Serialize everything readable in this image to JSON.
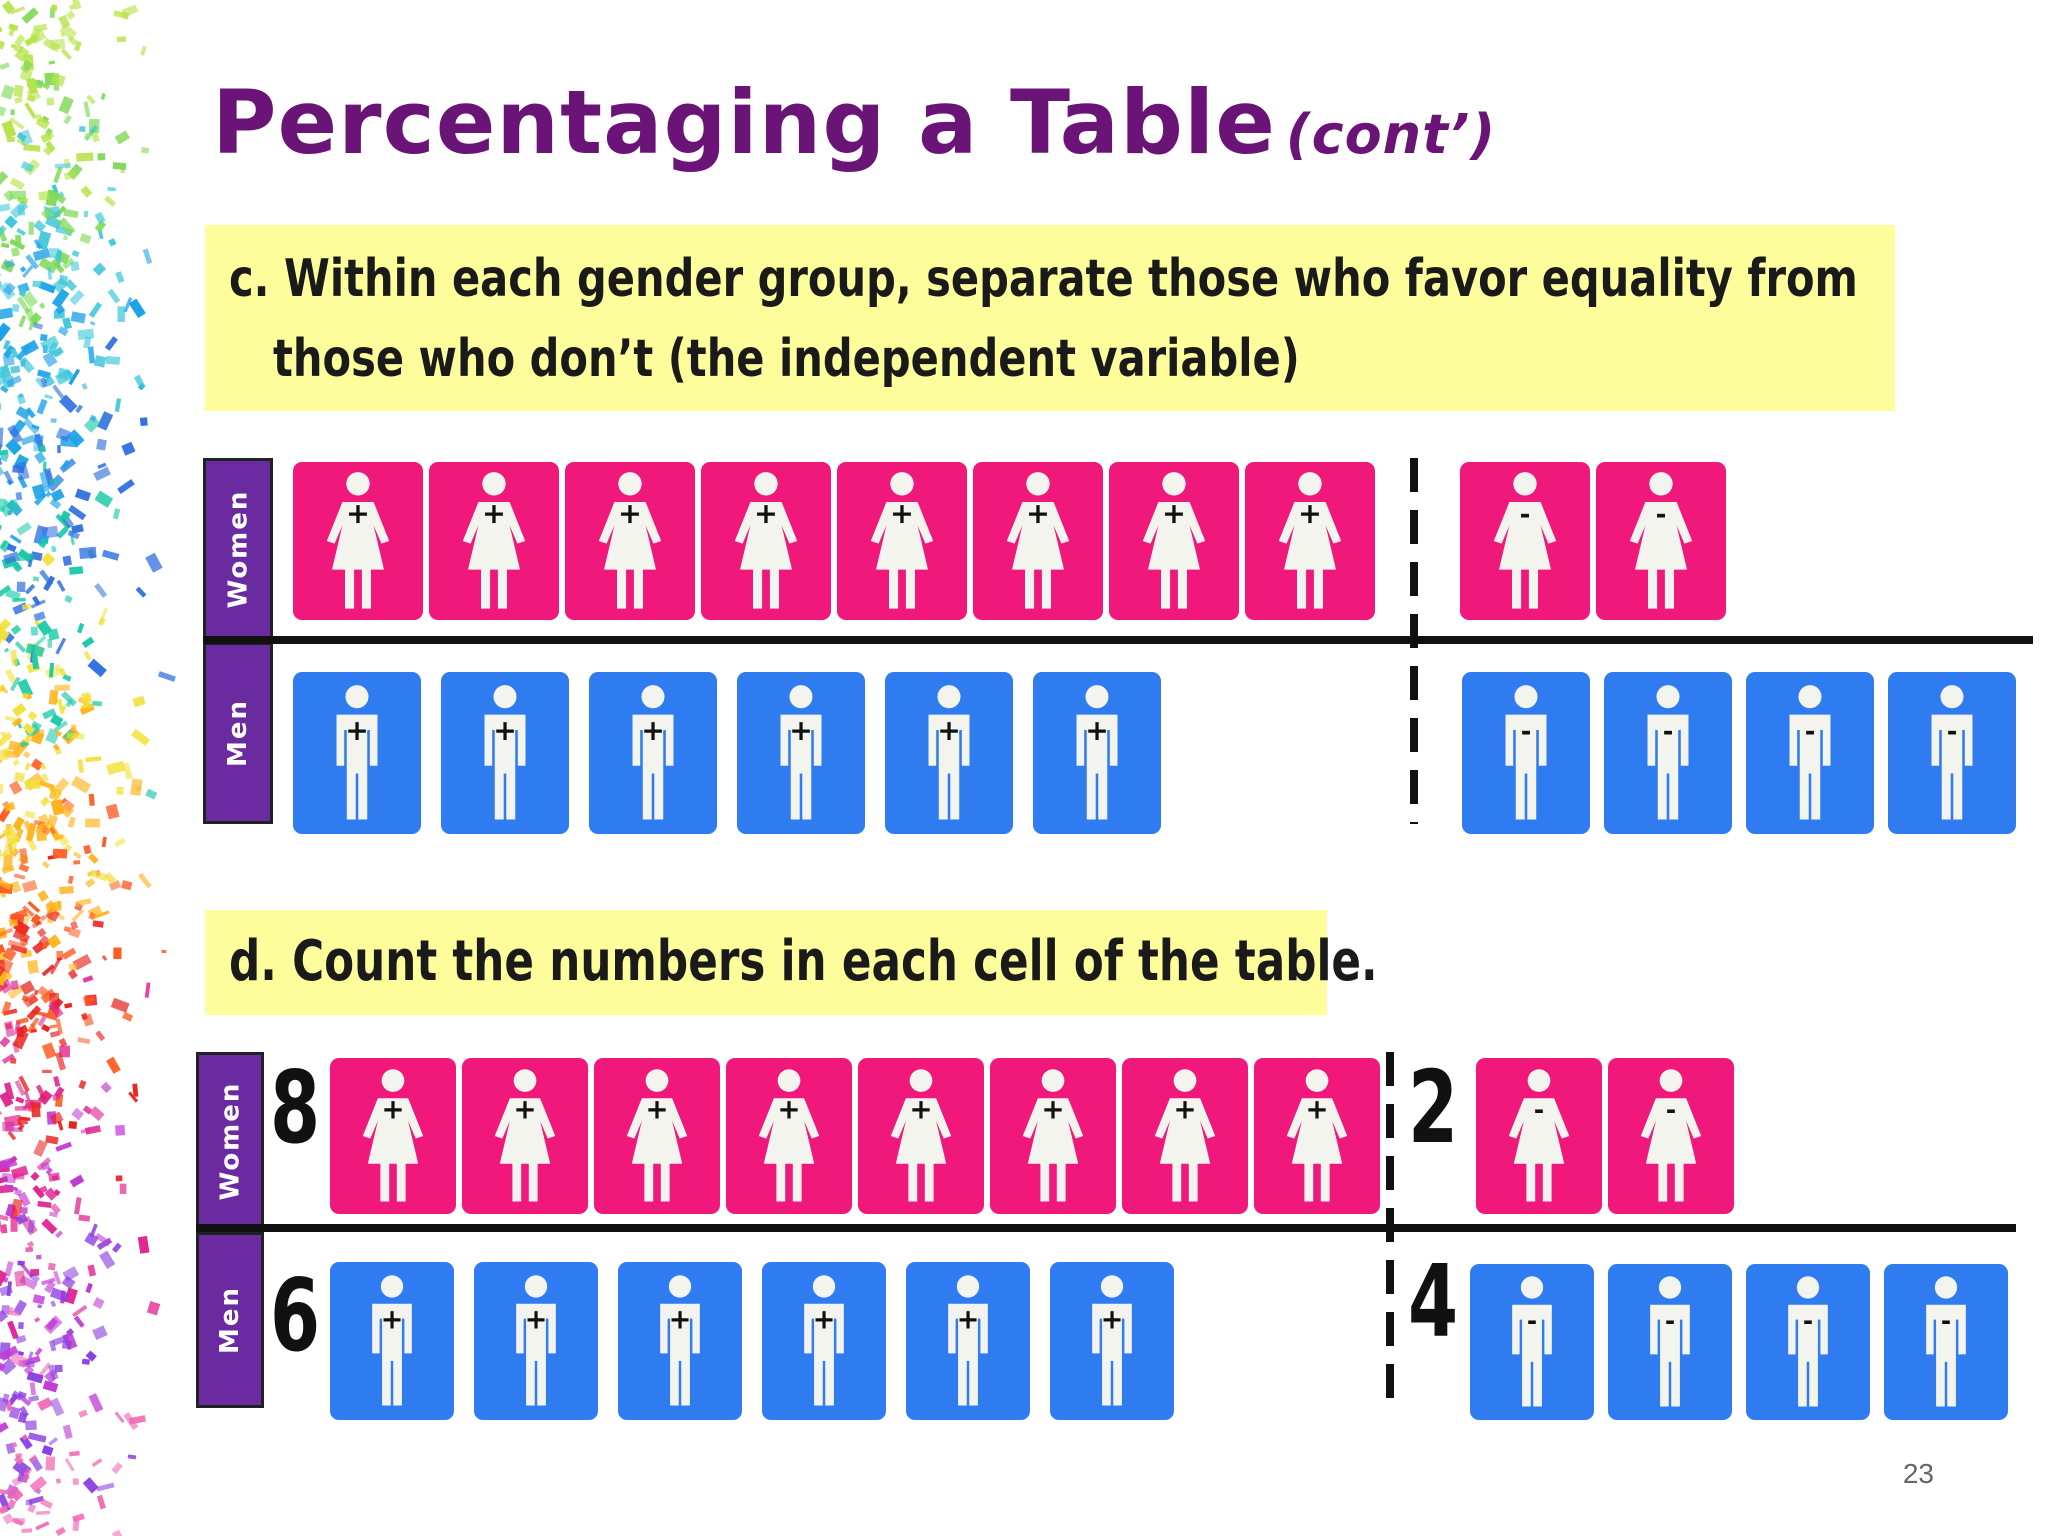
{
  "slide": {
    "title": "Percentaging a Table",
    "title_suffix": "(cont’)",
    "page_number": "23"
  },
  "step_c": {
    "line1": "c. Within each gender group, separate those who favor equality from",
    "line2": "those who don’t (the independent variable)"
  },
  "step_d": {
    "text": "d. Count the numbers in each cell of the table."
  },
  "group_labels": {
    "women": "Women",
    "men": "Men"
  },
  "counts": {
    "women_favor": "8",
    "women_not_favor": "2",
    "men_favor": "6",
    "men_not_favor": "4"
  },
  "icon_signs": {
    "favor": "+",
    "not_favor": "-"
  },
  "colors": {
    "title": "#6b1478",
    "callout_bg": "#fdfd9c",
    "label_bg": "#6a2aa0",
    "women_icon": "#f0187a",
    "men_icon": "#2f7cf0"
  },
  "icons": {
    "women": "woman-figure-icon",
    "men": "man-figure-icon"
  }
}
